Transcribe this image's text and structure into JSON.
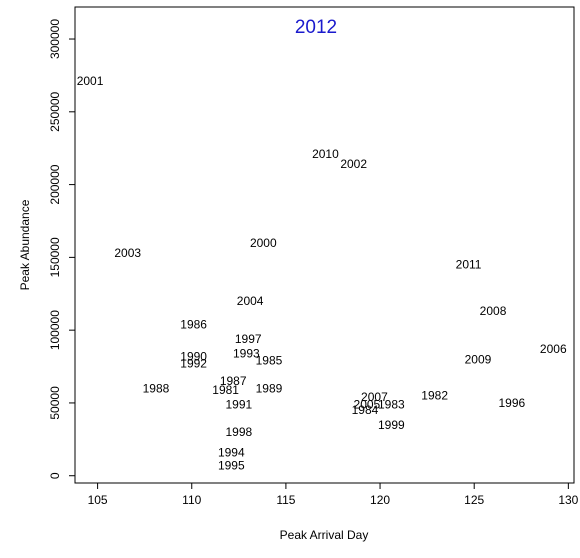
{
  "chart_data": {
    "type": "scatter",
    "title": "2012",
    "title_color": "#1a1acd",
    "xlabel": "Peak Arrival Day",
    "ylabel": "Peak Abundance",
    "xlim": [
      103.8,
      130.3
    ],
    "ylim": [
      -5000,
      322000
    ],
    "x_ticks": [
      105,
      110,
      115,
      120,
      125,
      130
    ],
    "y_ticks": [
      0,
      50000,
      100000,
      150000,
      200000,
      250000,
      300000
    ],
    "points": [
      {
        "label": "2001",
        "x": 104.6,
        "y": 271000
      },
      {
        "label": "2010",
        "x": 117.1,
        "y": 221000
      },
      {
        "label": "2002",
        "x": 118.6,
        "y": 214000
      },
      {
        "label": "2000",
        "x": 113.8,
        "y": 160000
      },
      {
        "label": "2003",
        "x": 106.6,
        "y": 153000
      },
      {
        "label": "2011",
        "x": 124.7,
        "y": 145000
      },
      {
        "label": "2004",
        "x": 113.1,
        "y": 120000
      },
      {
        "label": "2008",
        "x": 126.0,
        "y": 113000
      },
      {
        "label": "1986",
        "x": 110.1,
        "y": 104000
      },
      {
        "label": "1997",
        "x": 113.0,
        "y": 94000
      },
      {
        "label": "1993",
        "x": 112.9,
        "y": 84000
      },
      {
        "label": "2006",
        "x": 129.2,
        "y": 87000
      },
      {
        "label": "1990",
        "x": 110.1,
        "y": 82000
      },
      {
        "label": "1985",
        "x": 114.1,
        "y": 79000
      },
      {
        "label": "2009",
        "x": 125.2,
        "y": 80000
      },
      {
        "label": "1992",
        "x": 110.1,
        "y": 77000
      },
      {
        "label": "1987",
        "x": 112.2,
        "y": 65000
      },
      {
        "label": "1981",
        "x": 111.8,
        "y": 59000
      },
      {
        "label": "1989",
        "x": 114.1,
        "y": 60000
      },
      {
        "label": "1988",
        "x": 108.1,
        "y": 60000
      },
      {
        "label": "1982",
        "x": 122.9,
        "y": 55000
      },
      {
        "label": "2007",
        "x": 119.7,
        "y": 54000
      },
      {
        "label": "1991",
        "x": 112.5,
        "y": 49000
      },
      {
        "label": "2005",
        "x": 119.3,
        "y": 49000
      },
      {
        "label": "1983",
        "x": 120.6,
        "y": 49000
      },
      {
        "label": "1996",
        "x": 127.0,
        "y": 50000
      },
      {
        "label": "1984",
        "x": 119.2,
        "y": 45000
      },
      {
        "label": "1999",
        "x": 120.6,
        "y": 35000
      },
      {
        "label": "1998",
        "x": 112.5,
        "y": 30000
      },
      {
        "label": "1994",
        "x": 112.1,
        "y": 16000
      },
      {
        "label": "1995",
        "x": 112.1,
        "y": 7000
      }
    ]
  }
}
